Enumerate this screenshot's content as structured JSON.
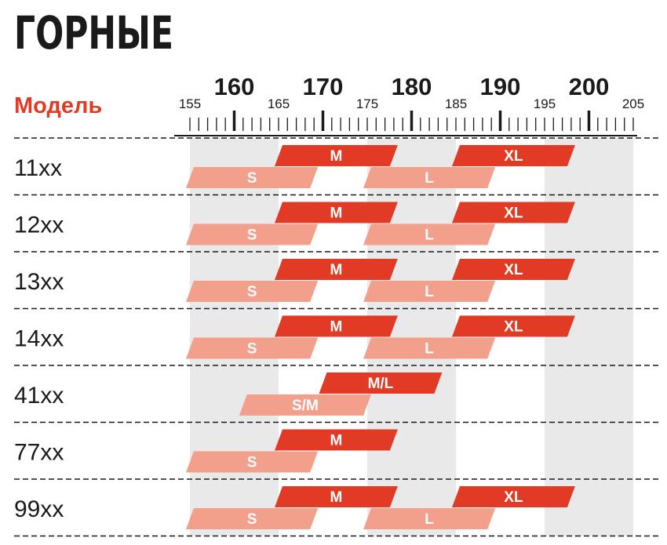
{
  "chart_data": {
    "type": "bar",
    "title": "ГОРНЫЕ",
    "row_header": "Модель",
    "xlim": [
      155,
      205
    ],
    "major_ticks": [
      160,
      170,
      180,
      190,
      200
    ],
    "minor_label_ticks": [
      155,
      165,
      175,
      185,
      195,
      205
    ],
    "grid": "alternating vertical bands every 10",
    "models": [
      {
        "model": "11xx",
        "sizes": [
          {
            "size": "S",
            "from": 155,
            "to": 169
          },
          {
            "size": "M",
            "from": 165,
            "to": 178
          },
          {
            "size": "L",
            "from": 175,
            "to": 189
          },
          {
            "size": "XL",
            "from": 185,
            "to": 198
          }
        ]
      },
      {
        "model": "12xx",
        "sizes": [
          {
            "size": "S",
            "from": 155,
            "to": 169
          },
          {
            "size": "M",
            "from": 165,
            "to": 178
          },
          {
            "size": "L",
            "from": 175,
            "to": 189
          },
          {
            "size": "XL",
            "from": 185,
            "to": 198
          }
        ]
      },
      {
        "model": "13xx",
        "sizes": [
          {
            "size": "S",
            "from": 155,
            "to": 169
          },
          {
            "size": "M",
            "from": 165,
            "to": 178
          },
          {
            "size": "L",
            "from": 175,
            "to": 189
          },
          {
            "size": "XL",
            "from": 185,
            "to": 198
          }
        ]
      },
      {
        "model": "14xx",
        "sizes": [
          {
            "size": "S",
            "from": 155,
            "to": 169
          },
          {
            "size": "M",
            "from": 165,
            "to": 178
          },
          {
            "size": "L",
            "from": 175,
            "to": 189
          },
          {
            "size": "XL",
            "from": 185,
            "to": 198
          }
        ]
      },
      {
        "model": "41xx",
        "sizes": [
          {
            "size": "S/M",
            "from": 161,
            "to": 175
          },
          {
            "size": "M/L",
            "from": 170,
            "to": 183
          }
        ]
      },
      {
        "model": "77xx",
        "sizes": [
          {
            "size": "S",
            "from": 155,
            "to": 169
          },
          {
            "size": "M",
            "from": 165,
            "to": 178
          }
        ]
      },
      {
        "model": "99xx",
        "sizes": [
          {
            "size": "S",
            "from": 155,
            "to": 169
          },
          {
            "size": "M",
            "from": 165,
            "to": 178
          },
          {
            "size": "L",
            "from": 175,
            "to": 189
          },
          {
            "size": "XL",
            "from": 185,
            "to": 198
          }
        ]
      }
    ]
  },
  "colors": {
    "primary_red": "#e23b25",
    "light_salmon": "#f2a08c",
    "band_gray": "#e9e9e9",
    "text_dark": "#1a1a1a",
    "header_red": "#e23b25"
  }
}
